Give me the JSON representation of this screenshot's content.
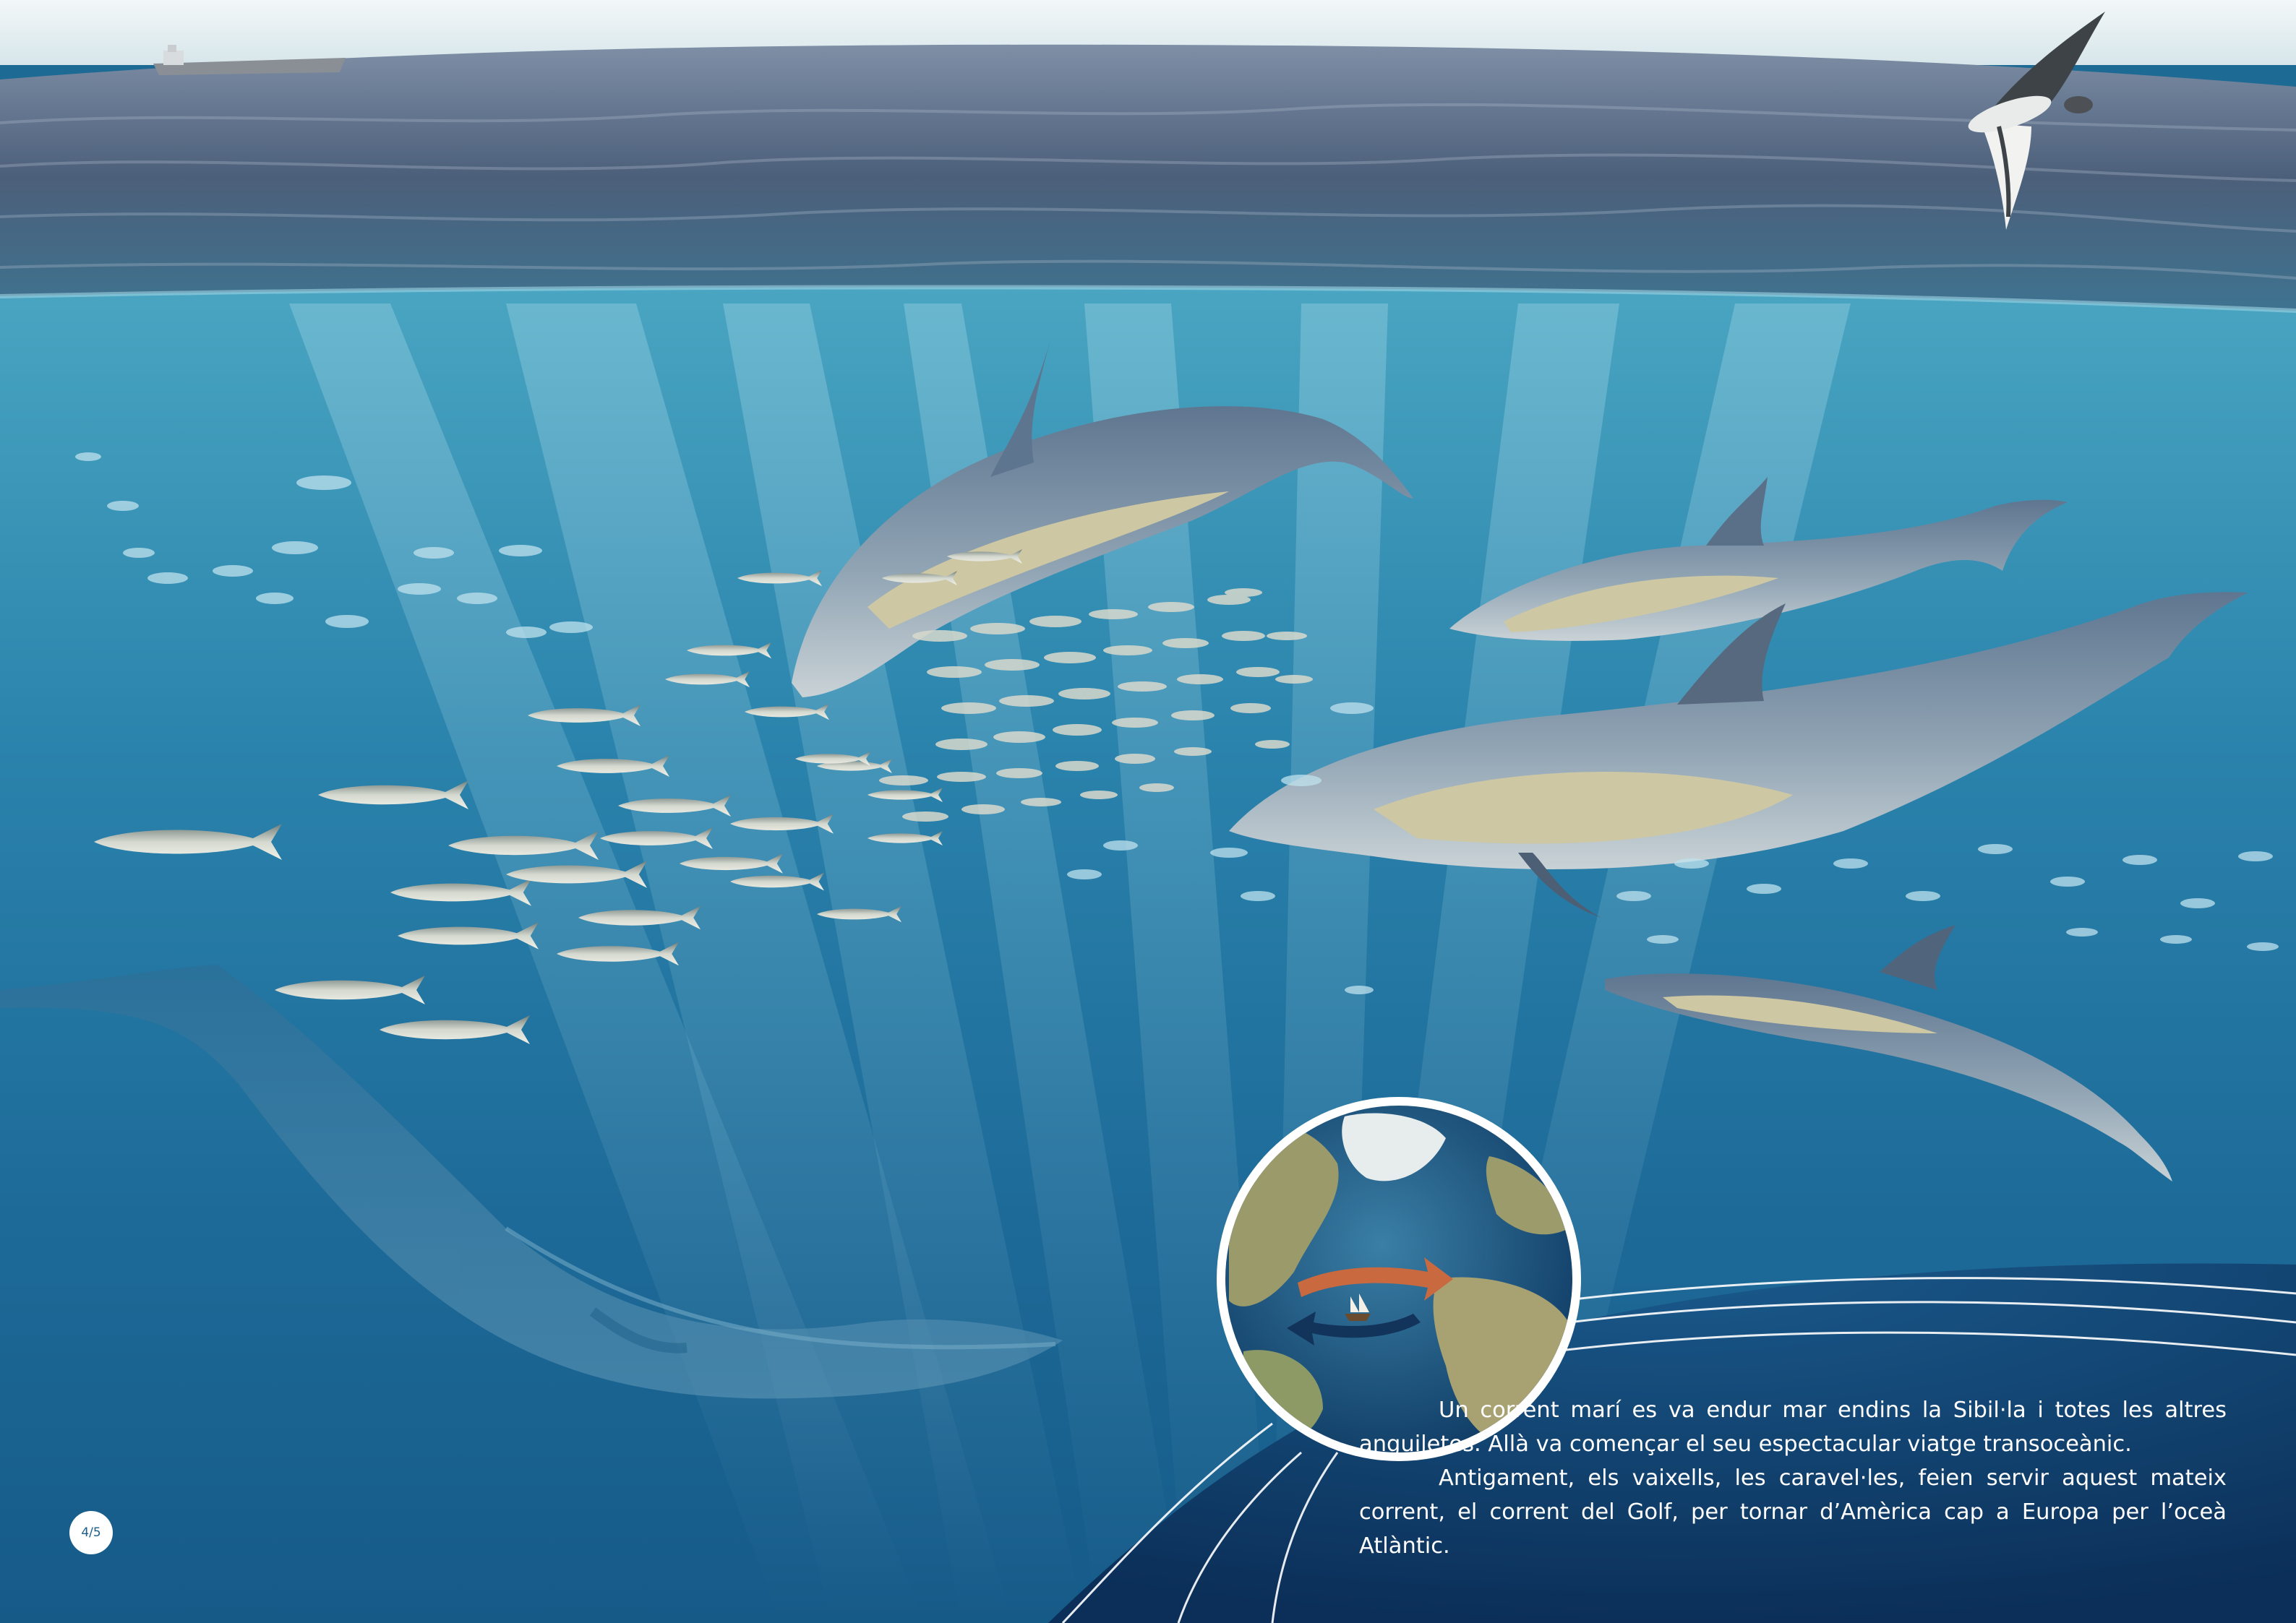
{
  "scene": {
    "elements": [
      "sea-surface",
      "cargo-ship",
      "seabird",
      "dolphins",
      "sardine-school",
      "whale",
      "globe"
    ],
    "colors": {
      "sky": "#e8f2f4",
      "surface_water": "#4b5f78",
      "shallow_water": "#3f9ab8",
      "deep_water": "#13507c",
      "night_band": "#0d3560",
      "text": "#ffffff"
    }
  },
  "globe": {
    "icons": [
      "gulf-stream-arrow-icon",
      "return-current-arrow-icon",
      "caravel-icon"
    ],
    "colors": {
      "current_east": "#c8693f",
      "current_west": "#12335a"
    }
  },
  "story": {
    "paragraph_1": "Un corrent marí es va endur mar endins la Sibil·la i totes les altres anguiletes. Allà va començar el seu espectacular viatge transoceànic.",
    "paragraph_2": "Antigament, els vaixells, les caravel·les, feien servir aquest mateix corrent, el corrent del Golf, per tornar d’Amèrica cap a Europa per l’oceà Atlàntic."
  },
  "page": {
    "number": "4/5"
  }
}
